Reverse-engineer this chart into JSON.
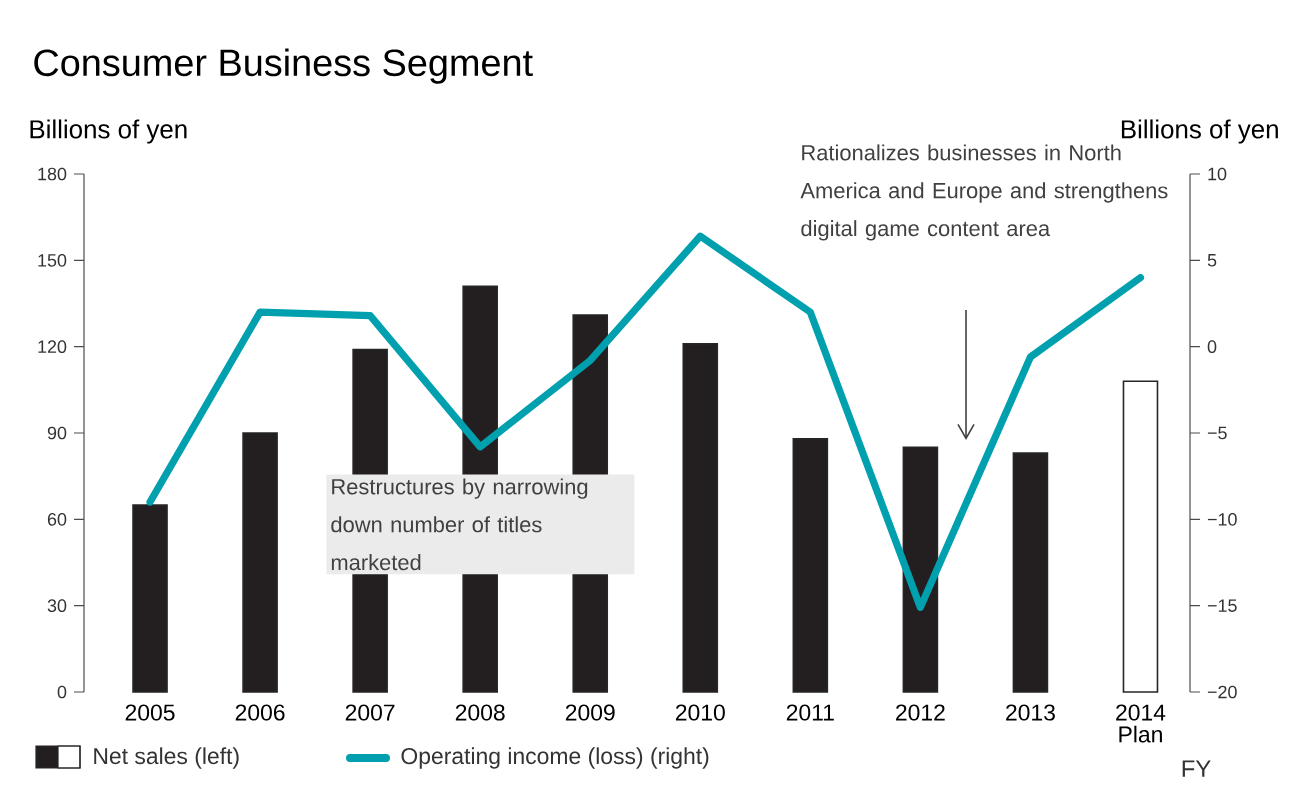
{
  "chart_data": {
    "type": "bar",
    "title": "Consumer Business Segment",
    "xlabel": "FY",
    "ylabel": "Billions of yen",
    "y2label": "Billions of yen",
    "categories": [
      "2005",
      "2006",
      "2007",
      "2008",
      "2009",
      "2010",
      "2011",
      "2012",
      "2013",
      "2014 Plan"
    ],
    "series": [
      {
        "name": "Net sales (left)",
        "color": "#231f20",
        "colors": [
          "#231f20",
          "#231f20",
          "#231f20",
          "#231f20",
          "#231f20",
          "#231f20",
          "#231f20",
          "#231f20",
          "#231f20",
          "#ffffff"
        ],
        "values": [
          65,
          90,
          119,
          141,
          131,
          121,
          88,
          85,
          83,
          108
        ]
      },
      {
        "name": "Operating income (loss) (right)",
        "type": "line",
        "axis": "y2",
        "color": "#00a0ae",
        "values": [
          -9,
          2,
          1.8,
          -5.8,
          -0.8,
          6.4,
          2,
          -15.1,
          -0.6,
          4
        ]
      }
    ],
    "ylim": [
      0,
      180
    ],
    "yticks": [
      0,
      30,
      60,
      90,
      120,
      150,
      180
    ],
    "y2lim": [
      -20,
      10
    ],
    "y2ticks": [
      10,
      5,
      0,
      {
        "value": -5,
        "label": "−5"
      },
      {
        "value": -10,
        "label": "−10"
      },
      {
        "value": -15,
        "label": "−15"
      },
      {
        "value": -20,
        "label": "−20"
      }
    ],
    "legend": "bottom left",
    "annotations": [
      "Restructures by narrowing down number of titles marketed",
      "Rationalizes businesses in North America and Europe and strengthens digital game content area"
    ]
  }
}
